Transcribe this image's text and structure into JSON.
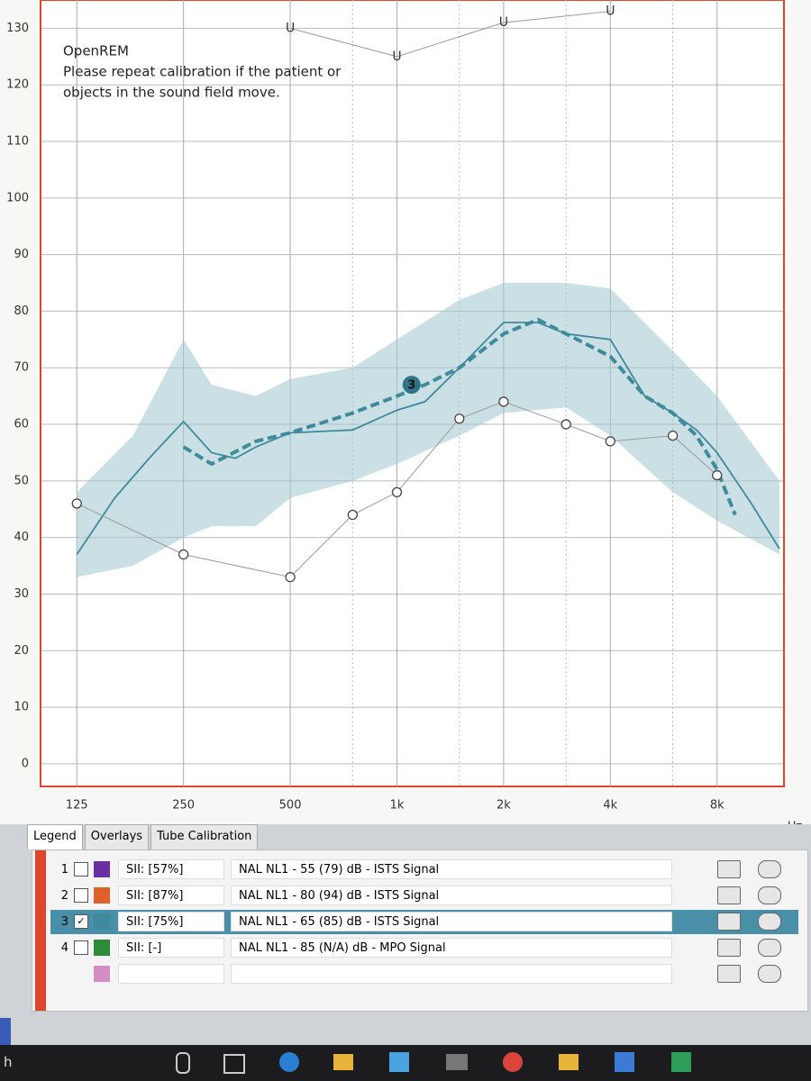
{
  "chart_data": {
    "type": "line",
    "annotations": [
      "OpenREM",
      "Please repeat calibration if the patient or",
      "objects in the sound field move."
    ],
    "x_unit": "Hz",
    "xlim": [
      113,
      12000
    ],
    "log_x": true,
    "xticks": [
      125,
      250,
      500,
      {
        "value": 1000,
        "label": "1k"
      },
      {
        "value": 2000,
        "label": "2k"
      },
      {
        "value": 4000,
        "label": "4k"
      },
      {
        "value": 8000,
        "label": "8k"
      }
    ],
    "minor_xticks": [
      750,
      1500,
      3000,
      6000
    ],
    "ylim": [
      -4,
      135
    ],
    "yticks": [
      0,
      10,
      20,
      30,
      40,
      50,
      60,
      70,
      80,
      90,
      100,
      110,
      120,
      130
    ],
    "grid": true,
    "band": {
      "color": "#9ec6cf",
      "x": [
        125,
        180,
        250,
        300,
        400,
        500,
        750,
        1000,
        1500,
        2000,
        3000,
        4000,
        6000,
        8000,
        12000
      ],
      "upper": [
        48,
        58,
        75,
        67,
        65,
        68,
        70,
        75,
        82,
        85,
        85,
        84,
        73,
        65,
        50
      ],
      "lower": [
        33,
        35,
        40,
        42,
        42,
        47,
        50,
        53,
        58,
        62,
        63,
        58,
        48,
        43,
        37
      ]
    },
    "series": [
      {
        "color": "#3f8a9c",
        "dash": false,
        "x": [
          125,
          160,
          200,
          250,
          300,
          350,
          400,
          500,
          750,
          1000,
          1200,
          1500,
          2000,
          2500,
          3000,
          4000,
          5000,
          6000,
          7000,
          8000,
          10000,
          12000
        ],
        "values": [
          37,
          47,
          54,
          60.5,
          55,
          54,
          56,
          58.5,
          59,
          62.5,
          64,
          70,
          78,
          78,
          76,
          75,
          65,
          62,
          59,
          55,
          46,
          38
        ]
      },
      {
        "color": "#3f8a9c",
        "dash": true,
        "x": [
          250,
          300,
          400,
          500,
          750,
          1000,
          1200,
          1500,
          2000,
          2500,
          3000,
          4000,
          5000,
          6000,
          7000,
          8000,
          9000
        ],
        "values": [
          56,
          53,
          57,
          58.5,
          62,
          65,
          67,
          70,
          76,
          78.5,
          76,
          72,
          65,
          62,
          58,
          52,
          44
        ]
      },
      {
        "color": "#999999",
        "marker": "circle",
        "x": [
          125,
          250,
          500,
          750,
          1000,
          1500,
          2000,
          3000,
          4000,
          6000,
          8000
        ],
        "values": [
          46,
          37,
          33,
          44,
          48,
          61,
          64,
          60,
          57,
          58,
          51
        ]
      },
      {
        "color": "#999999",
        "marker": "U",
        "x": [
          500,
          1000,
          2000,
          4000
        ],
        "values": [
          130,
          125,
          131,
          133
        ]
      }
    ],
    "curve_marker": {
      "label": "3",
      "x": 1100,
      "y": 67,
      "color": "#2f7388"
    }
  },
  "tabs": [
    "Legend",
    "Overlays",
    "Tube Calibration"
  ],
  "legend_rows": [
    {
      "number": "1",
      "checked": false,
      "color": "#6a2fa0",
      "sii": "SII: [57%]",
      "label": "NAL NL1 - 55 (79) dB - ISTS Signal"
    },
    {
      "number": "2",
      "checked": false,
      "color": "#e0602a",
      "sii": "SII: [87%]",
      "label": "NAL NL1 - 80 (94) dB - ISTS Signal"
    },
    {
      "number": "3",
      "checked": true,
      "color": "#3f8a9c",
      "sii": "SII: [75%]",
      "label": "NAL NL1 - 65 (85) dB - ISTS Signal"
    },
    {
      "number": "4",
      "checked": false,
      "color": "#2e8b3a",
      "sii": "SII: [-]",
      "label": "NAL NL1 - 85 (N/A) dB - MPO Signal"
    },
    {
      "checked": false,
      "color": "#d48fc2"
    }
  ],
  "taskbar_text": "h"
}
